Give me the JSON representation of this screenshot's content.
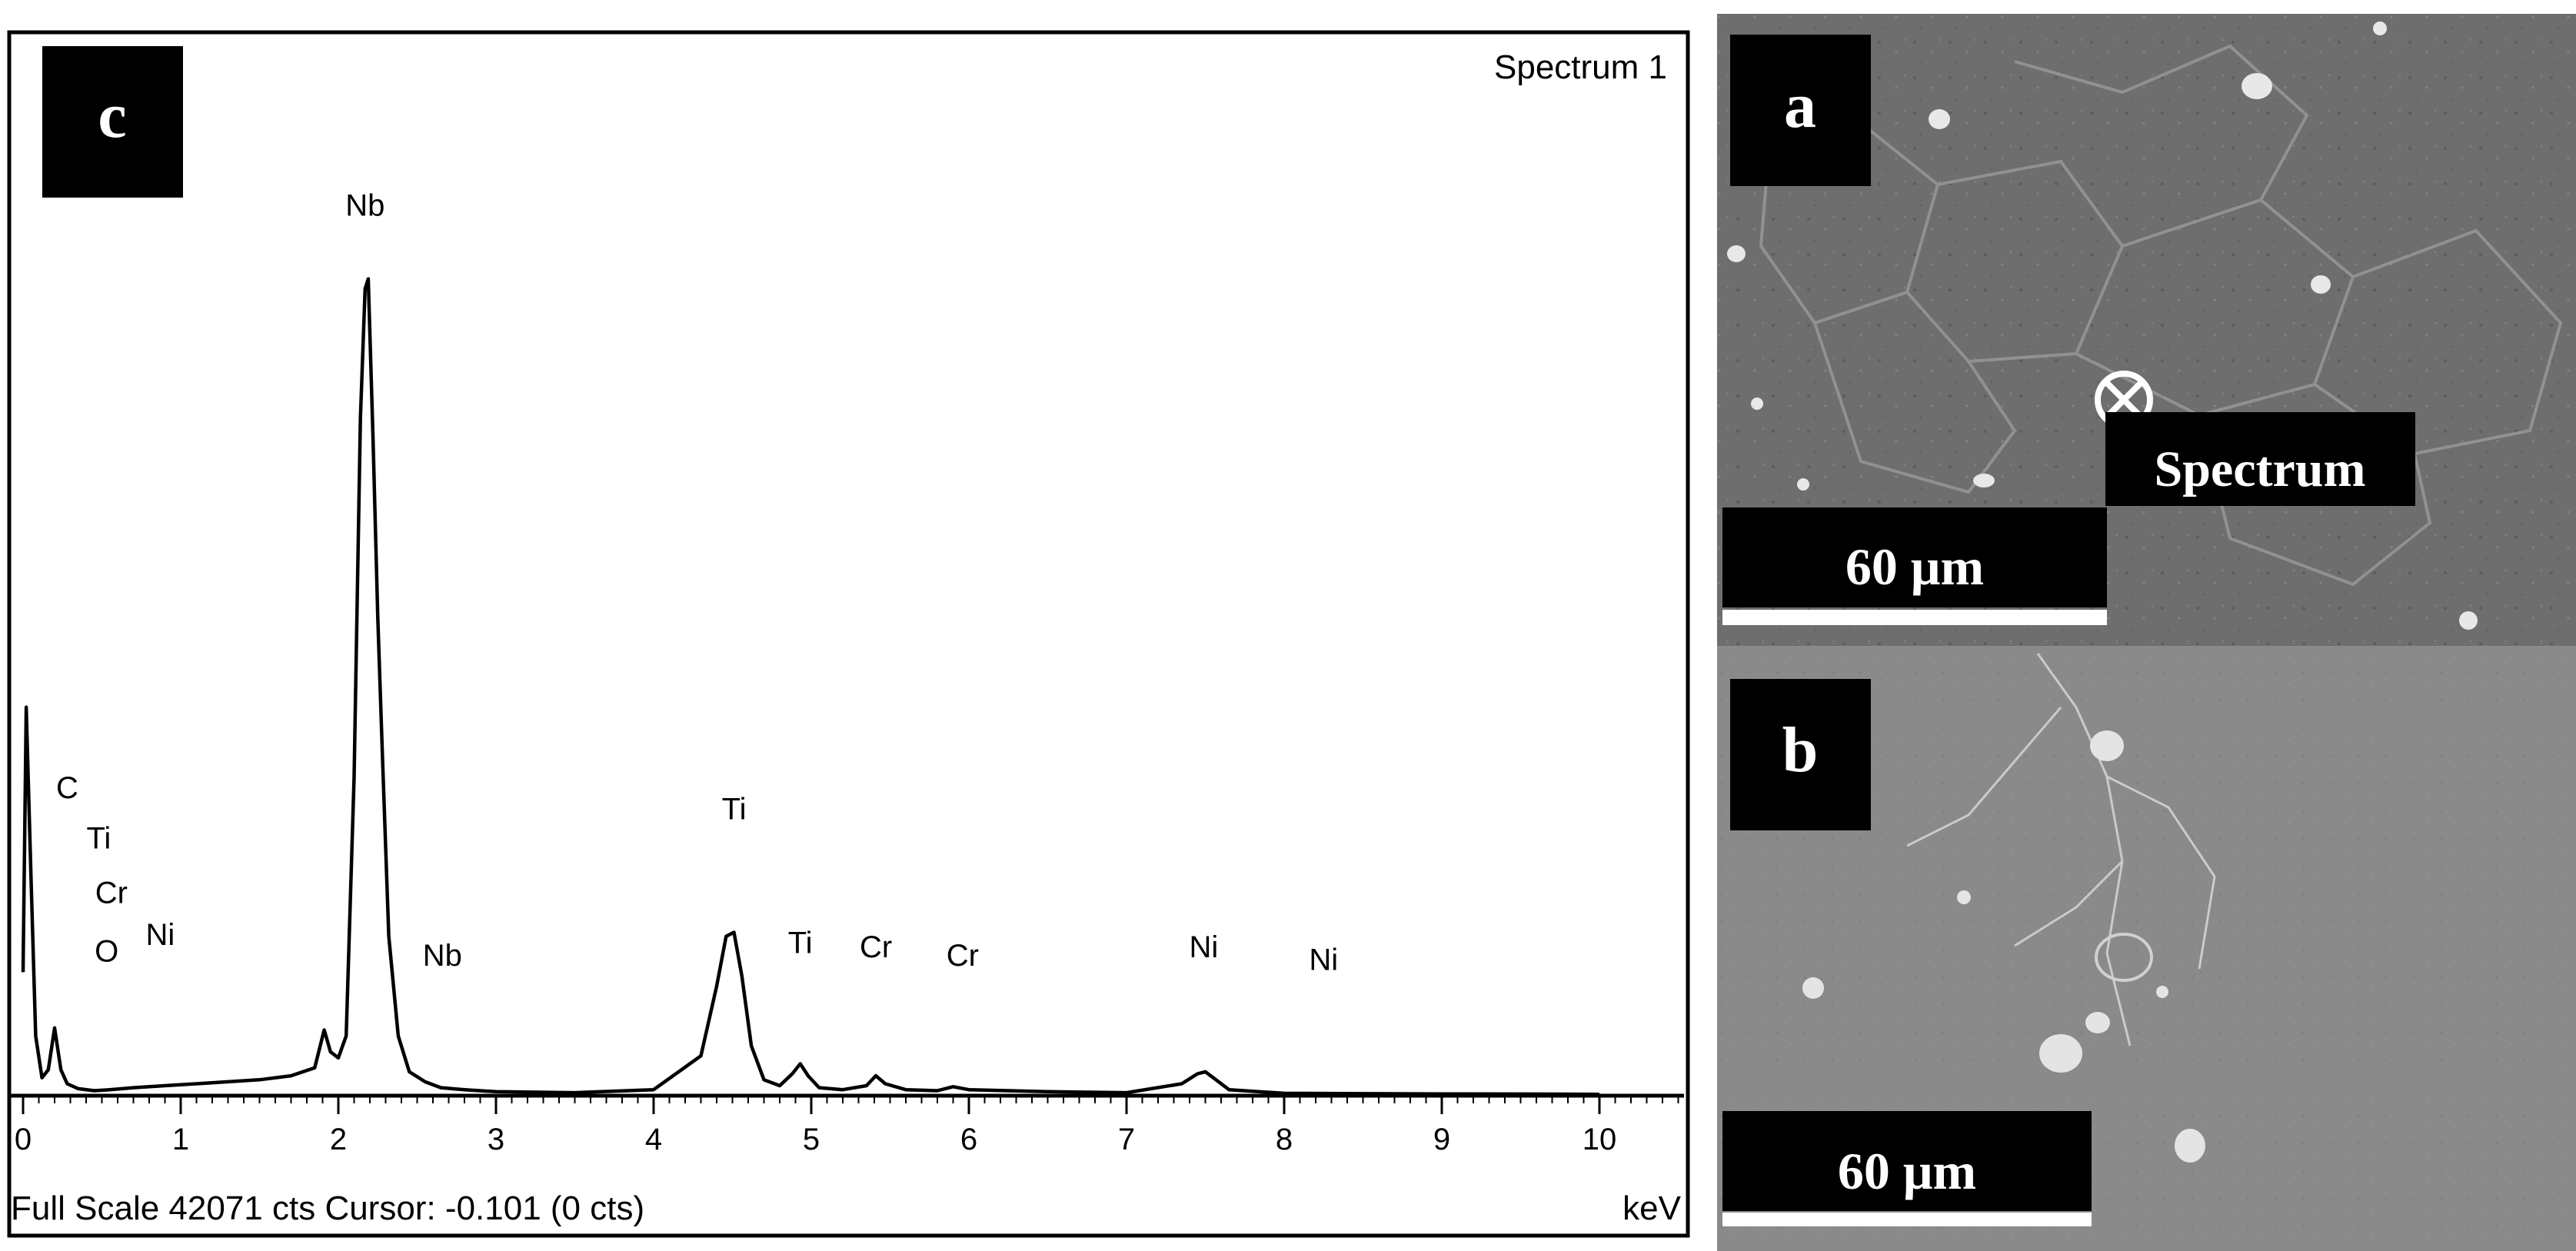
{
  "chart_data": {
    "type": "line",
    "title": "Spectrum 1",
    "x_unit_label": "keV",
    "xlim": [
      -0.1,
      10.5
    ],
    "x_ticks": [
      "0",
      "1",
      "2",
      "3",
      "4",
      "5",
      "6",
      "7",
      "8",
      "9",
      "10"
    ],
    "full_scale_cts": 42071,
    "status_text": "Full Scale 42071 cts Cursor: -0.101  (0 cts)",
    "series": [
      {
        "x": [
          0.0,
          0.02,
          0.05,
          0.08,
          0.12,
          0.16,
          0.2,
          0.24,
          0.28,
          0.35,
          0.45,
          0.55,
          0.7,
          0.9,
          1.1,
          1.3,
          1.5,
          1.7,
          1.85,
          1.91,
          1.95,
          2.0,
          2.05,
          2.1,
          2.14,
          2.17,
          2.19,
          2.22,
          2.25,
          2.28,
          2.32,
          2.38,
          2.45,
          2.55,
          2.65,
          2.8,
          3.0,
          3.5,
          4.0,
          4.3,
          4.4,
          4.46,
          4.51,
          4.56,
          4.62,
          4.7,
          4.8,
          4.88,
          4.93,
          4.98,
          5.05,
          5.2,
          5.35,
          5.41,
          5.47,
          5.6,
          5.8,
          5.9,
          6.0,
          6.5,
          7.0,
          7.35,
          7.45,
          7.5,
          7.55,
          7.65,
          8.0,
          8.5,
          9.0,
          9.5,
          10.0
        ],
        "counts": [
          6200,
          19500,
          11000,
          3000,
          900,
          1300,
          3400,
          1300,
          600,
          350,
          250,
          300,
          400,
          500,
          600,
          700,
          800,
          1000,
          1400,
          3300,
          2200,
          1900,
          3000,
          16000,
          34000,
          40500,
          41000,
          33000,
          24000,
          17000,
          8000,
          3000,
          1200,
          700,
          400,
          300,
          200,
          150,
          300,
          2000,
          5500,
          8000,
          8200,
          6000,
          2500,
          800,
          500,
          1100,
          1600,
          1000,
          400,
          300,
          500,
          1000,
          600,
          300,
          250,
          450,
          300,
          200,
          150,
          600,
          1100,
          1200,
          900,
          300,
          120,
          100,
          90,
          80,
          70
        ]
      }
    ],
    "peak_labels": [
      {
        "text": "C",
        "x": 0.28,
        "y": 0.355
      },
      {
        "text": "Ti",
        "x": 0.48,
        "y": 0.295
      },
      {
        "text": "Cr",
        "x": 0.56,
        "y": 0.23
      },
      {
        "text": "O",
        "x": 0.53,
        "y": 0.16
      },
      {
        "text": "Ni",
        "x": 0.87,
        "y": 0.18
      },
      {
        "text": "Nb",
        "x": 2.17,
        "y": 1.05
      },
      {
        "text": "Nb",
        "x": 2.66,
        "y": 0.155
      },
      {
        "text": "Ti",
        "x": 4.51,
        "y": 0.33
      },
      {
        "text": "Ti",
        "x": 4.93,
        "y": 0.17
      },
      {
        "text": "Cr",
        "x": 5.41,
        "y": 0.165
      },
      {
        "text": "Cr",
        "x": 5.96,
        "y": 0.155
      },
      {
        "text": "Ni",
        "x": 7.49,
        "y": 0.165
      },
      {
        "text": "Ni",
        "x": 8.25,
        "y": 0.15
      }
    ]
  },
  "panels": {
    "c_label": "c",
    "a_label": "a",
    "b_label": "b",
    "a_scale_label": "60 μm",
    "b_scale_label": "60 μm",
    "spectrum_marker_label": "Spectrum",
    "colors": {
      "sem_a_bg": "#6e6e6e",
      "sem_b_bg": "#8a8a8a",
      "label_box": "#000000",
      "trace": "#000000"
    }
  }
}
